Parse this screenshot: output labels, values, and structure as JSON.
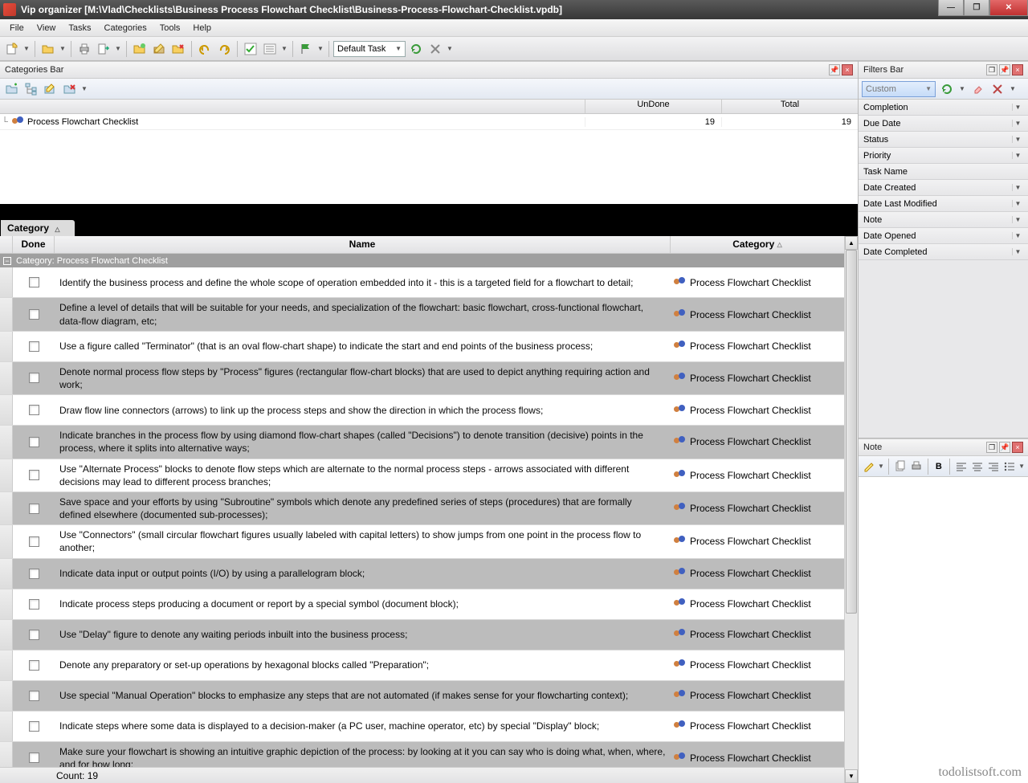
{
  "window": {
    "title": "Vip organizer [M:\\Vlad\\Checklists\\Business Process Flowchart Checklist\\Business-Process-Flowchart-Checklist.vpdb]"
  },
  "menu": [
    "File",
    "View",
    "Tasks",
    "Categories",
    "Tools",
    "Help"
  ],
  "toolbar": {
    "default_task": "Default Task"
  },
  "categories_bar": {
    "title": "Categories Bar",
    "col_undone": "UnDone",
    "col_total": "Total",
    "row": {
      "label": "Process Flowchart Checklist",
      "undone": "19",
      "total": "19"
    }
  },
  "group_band": {
    "label": "Category"
  },
  "task_headers": {
    "done": "Done",
    "name": "Name",
    "category": "Category"
  },
  "group_row": {
    "label": "Category: Process Flowchart Checklist"
  },
  "category_name": "Process Flowchart Checklist",
  "tasks": [
    "Identify the business process and define the whole scope of operation embedded into it - this is a targeted field for a flowchart to detail;",
    "Define a level of details that will be suitable for your needs, and specialization of the flowchart: basic flowchart, cross-functional flowchart, data-flow diagram, etc;",
    "Use a figure called \"Terminator\" (that is an oval flow-chart shape) to indicate the start and end points of the business process;",
    "Denote normal process flow steps by \"Process\" figures (rectangular flow-chart blocks) that are used to depict anything requiring action and work;",
    "Draw flow line connectors (arrows) to link up the process steps and show the direction in which the process flows;",
    "Indicate branches in the process flow by using diamond flow-chart shapes (called \"Decisions\") to denote transition (decisive) points in the process, where it splits into alternative ways;",
    "Use \"Alternate Process\" blocks to denote flow steps which are alternate to the normal process steps - arrows associated with different decisions may lead to different process branches;",
    "Save space and your efforts by using \"Subroutine\" symbols which denote any predefined series of steps (procedures) that are formally defined elsewhere (documented sub-processes);",
    "Use \"Connectors\" (small circular flowchart figures usually labeled with capital letters) to show jumps from one point in the process flow to another;",
    "Indicate data input or output points (I/O) by using a parallelogram block;",
    "Indicate process steps producing a document or report by a special symbol (document block);",
    "Use \"Delay\" figure to denote any waiting periods inbuilt into the business process;",
    "Denote any preparatory or set-up operations by hexagonal blocks called \"Preparation\";",
    "Use special \"Manual Operation\" blocks to emphasize any steps that are not automated (if makes sense for your flowcharting context);",
    "Indicate steps where some data is displayed to a decision-maker (a PC user, machine operator, etc) by special \"Display\" block;",
    "Make sure your flowchart is showing an intuitive graphic depiction of the process: by looking at it you can say who is doing what, when, where, and for how long;"
  ],
  "footer": {
    "count_label": "Count: 19"
  },
  "filters_bar": {
    "title": "Filters Bar",
    "custom": "Custom",
    "rows": [
      "Completion",
      "Due Date",
      "Status",
      "Priority",
      "Task Name",
      "Date Created",
      "Date Last Modified",
      "Note",
      "Date Opened",
      "Date Completed"
    ]
  },
  "note_panel": {
    "title": "Note"
  },
  "watermark": "todolistsoft.com",
  "colors": {
    "titlebar_top": "#5a5a5a",
    "titlebar_bottom": "#373737",
    "close_btn": "#c03030",
    "alt_row": "#bcbcbc",
    "group_row_bg": "#9f9f9f",
    "filter_dd_border": "#7aa0d8"
  }
}
